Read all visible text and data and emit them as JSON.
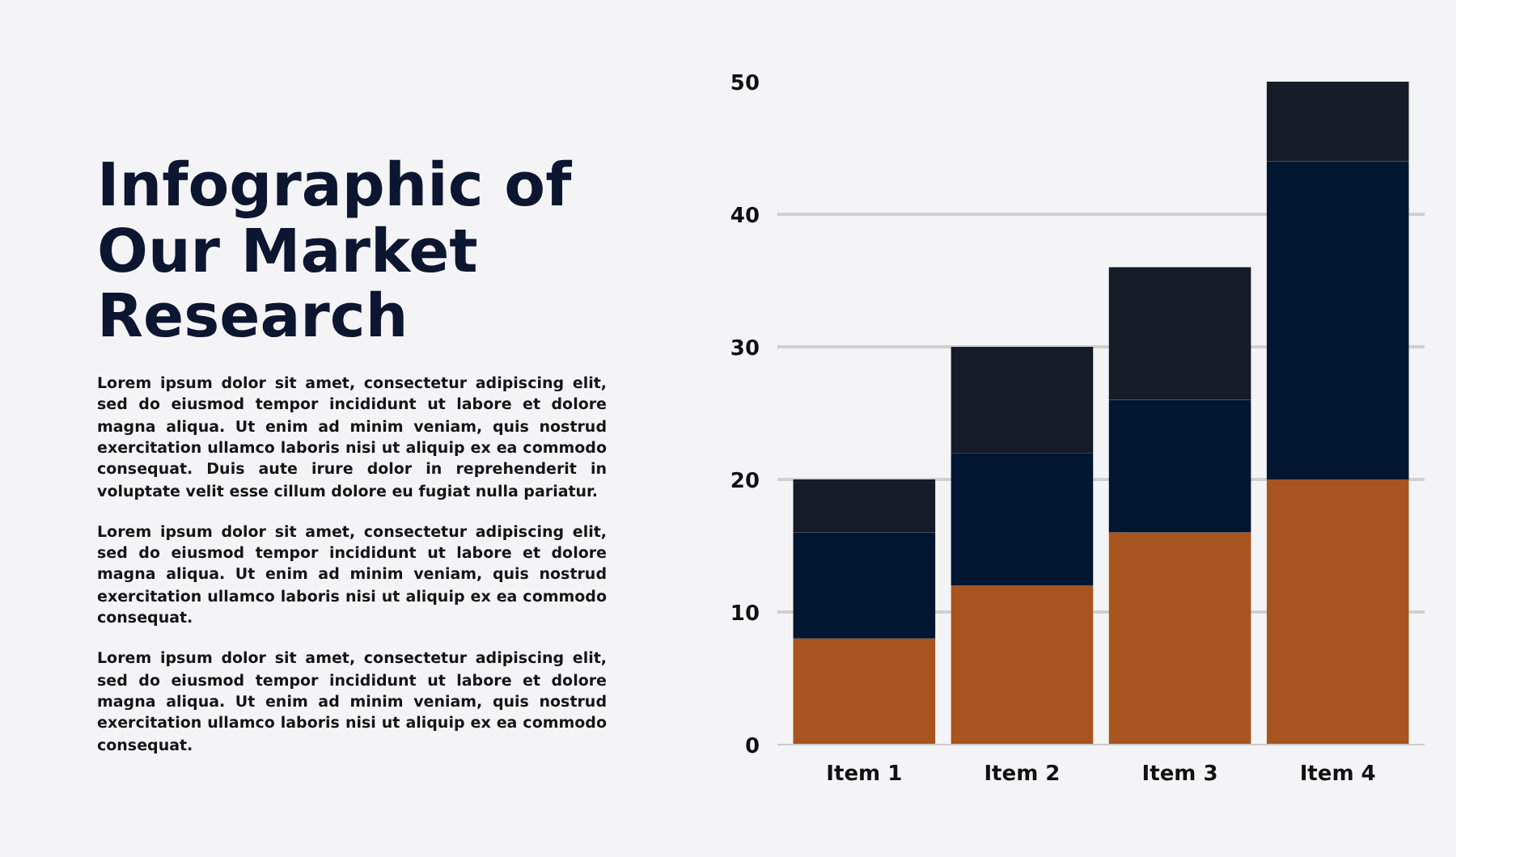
{
  "chart_data": {
    "type": "bar",
    "stacked": true,
    "title": "Infographic of Our Market Research",
    "annotations": [
      "Lorem ipsum dolor sit amet, consectetur adipiscing elit, sed do eiusmod tempor incididunt ut labore et dolore magna aliqua. Ut enim ad minim veniam, quis nostrud exercitation ullamco laboris nisi ut aliquip ex ea commodo consequat. Duis aute irure dolor in reprehenderit in voluptate velit esse cillum dolore eu fugiat nulla pariatur.",
      "Lorem ipsum dolor sit amet, consectetur adipiscing elit, sed do eiusmod tempor incididunt ut labore et dolore magna aliqua. Ut enim ad minim veniam, quis nostrud exercitation ullamco laboris nisi ut aliquip ex ea commodo consequat.",
      "Lorem ipsum dolor sit amet, consectetur adipiscing elit, sed do eiusmod tempor incididunt ut labore et dolore magna aliqua. Ut enim ad minim veniam, quis nostrud exercitation ullamco laboris nisi ut aliquip ex ea commodo consequat."
    ],
    "categories": [
      "Item 1",
      "Item 2",
      "Item 3",
      "Item 4"
    ],
    "series": [
      {
        "color": "#a8541e",
        "values": [
          8,
          12,
          16,
          20
        ]
      },
      {
        "color": "#011631",
        "values": [
          8,
          10,
          10,
          24
        ]
      },
      {
        "color": "#151b27",
        "values": [
          4,
          8,
          10,
          6
        ]
      }
    ],
    "ylim": [
      0,
      50
    ],
    "yticks": [
      0,
      10,
      20,
      30,
      40,
      50
    ],
    "grid": "y"
  }
}
